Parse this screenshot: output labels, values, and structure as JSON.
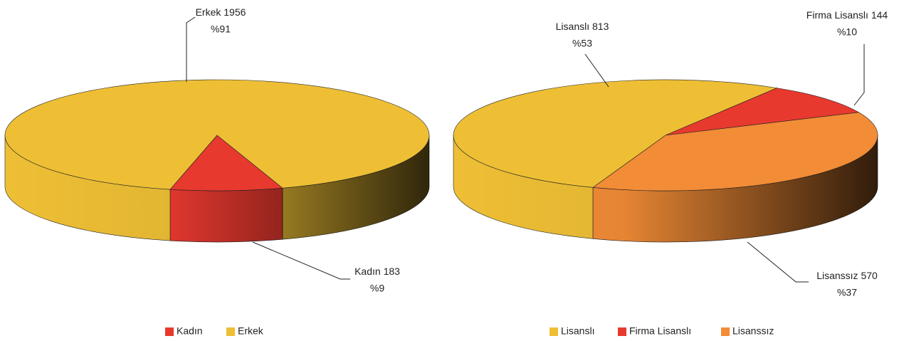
{
  "chart_data": [
    {
      "type": "pie",
      "categories": [
        "Kadın",
        "Erkek"
      ],
      "values": [
        183,
        1956
      ],
      "percent_labels": [
        "%9",
        "%91"
      ],
      "colors": [
        "#e8392f",
        "#eebf35"
      ],
      "legend": "bottom"
    },
    {
      "type": "pie",
      "categories": [
        "Lisanslı",
        "Firma Lisanslı",
        "Lisanssız"
      ],
      "values": [
        813,
        144,
        570
      ],
      "percent_labels": [
        "%53",
        "%10",
        "%37"
      ],
      "colors": [
        "#eebf35",
        "#e8392f",
        "#f28c36"
      ],
      "legend": "bottom"
    }
  ]
}
